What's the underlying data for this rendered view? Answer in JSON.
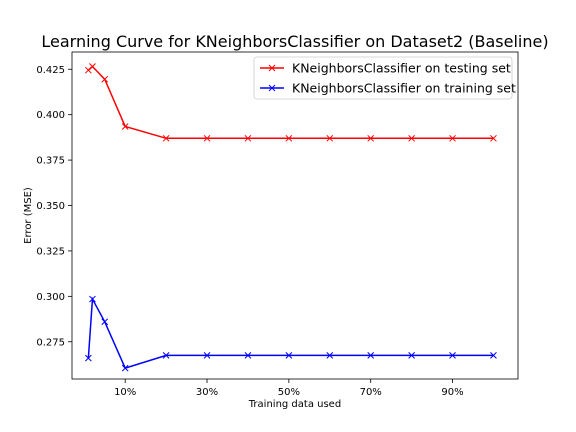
{
  "chart_data": {
    "type": "line",
    "title": "Learning Curve for KNeighborsClassifier on Dataset2 (Baseline)",
    "xlabel": "Training data used",
    "ylabel": "Error (MSE)",
    "xlim": [
      -0.03,
      1.06
    ],
    "ylim": [
      0.2545,
      0.4345
    ],
    "x_ticks": [
      0.1,
      0.3,
      0.5,
      0.7,
      0.9
    ],
    "x_tick_labels": [
      "10%",
      "30%",
      "50%",
      "70%",
      "90%"
    ],
    "y_ticks": [
      0.275,
      0.3,
      0.325,
      0.35,
      0.375,
      0.4,
      0.425
    ],
    "y_tick_labels": [
      "0.275",
      "0.300",
      "0.325",
      "0.350",
      "0.375",
      "0.400",
      "0.425"
    ],
    "legend_position": "top-right",
    "grid": false,
    "series": [
      {
        "name": "KNeighborsClassifier on testing set",
        "color": "#ff0000",
        "marker": "x",
        "x": [
          0.01,
          0.02,
          0.05,
          0.1,
          0.2,
          0.3,
          0.4,
          0.5,
          0.6,
          0.7,
          0.8,
          0.9,
          1.0
        ],
        "y": [
          0.4245,
          0.4265,
          0.4195,
          0.3935,
          0.387,
          0.387,
          0.387,
          0.387,
          0.387,
          0.387,
          0.387,
          0.387,
          0.387
        ]
      },
      {
        "name": "KNeighborsClassifier on training set",
        "color": "#0000ff",
        "marker": "x",
        "x": [
          0.01,
          0.02,
          0.05,
          0.1,
          0.2,
          0.3,
          0.4,
          0.5,
          0.6,
          0.7,
          0.8,
          0.9,
          1.0
        ],
        "y": [
          0.266,
          0.2985,
          0.286,
          0.2605,
          0.2675,
          0.2675,
          0.2675,
          0.2675,
          0.2675,
          0.2675,
          0.2675,
          0.2675,
          0.2675
        ]
      }
    ]
  }
}
